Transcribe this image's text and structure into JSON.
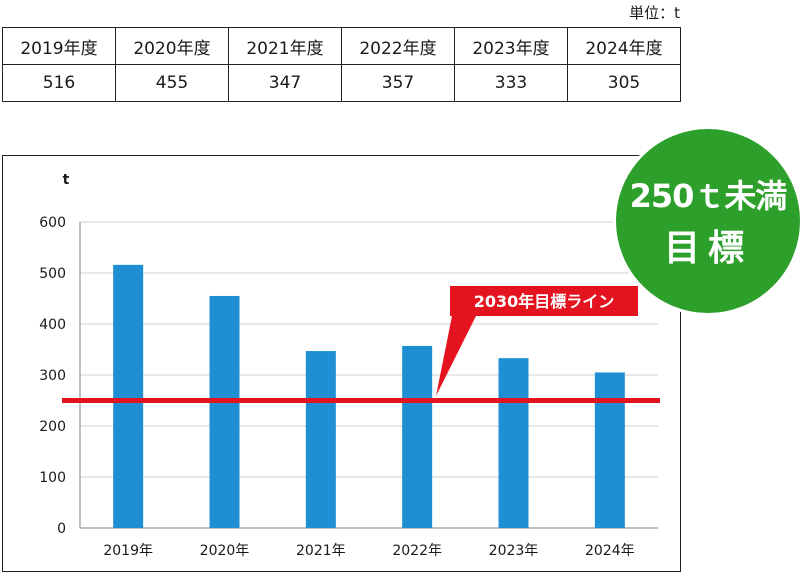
{
  "unit_label": "単位：t",
  "table": {
    "years": [
      "2019年度",
      "2020年度",
      "2021年度",
      "2022年度",
      "2023年度",
      "2024年度"
    ],
    "values": [
      "516",
      "455",
      "347",
      "357",
      "333",
      "305"
    ]
  },
  "badge": {
    "line1": "250ｔ未満",
    "line2": "目標"
  },
  "colors": {
    "bar": "#1f8fd4",
    "target_line": "#e3141f",
    "badge": "#2da02c",
    "grid": "#cfcfcf"
  },
  "chart_data": {
    "type": "bar",
    "categories": [
      "2019年",
      "2020年",
      "2021年",
      "2022年",
      "2023年",
      "2024年"
    ],
    "values": [
      516,
      455,
      347,
      357,
      333,
      305
    ],
    "ylabel": "t",
    "ylim": [
      0,
      600
    ],
    "yticks": [
      0,
      100,
      200,
      300,
      400,
      500,
      600
    ],
    "grid": true,
    "target": {
      "value": 250,
      "label": "2030年目標ライン"
    }
  }
}
